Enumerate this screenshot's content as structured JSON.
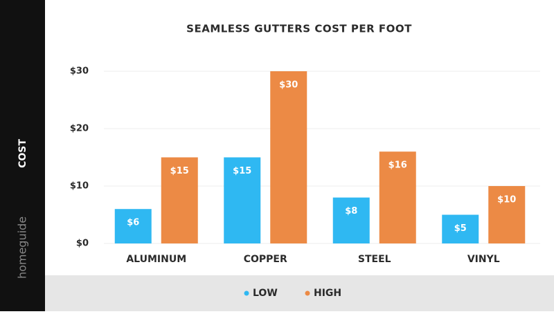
{
  "chart_data": {
    "type": "bar",
    "title": "SEAMLESS GUTTERS COST PER FOOT",
    "y_label": "COST",
    "brand": "homeguide",
    "categories": [
      "ALUMINUM",
      "COPPER",
      "STEEL",
      "VINYL"
    ],
    "series": [
      {
        "name": "LOW",
        "color": "#2fb8f2",
        "values": [
          6,
          15,
          8,
          5
        ],
        "value_labels": [
          "$6",
          "$15",
          "$8",
          "$5"
        ]
      },
      {
        "name": "HIGH",
        "color": "#ec8a45",
        "values": [
          15,
          30,
          16,
          10
        ],
        "value_labels": [
          "$15",
          "$30",
          "$16",
          "$10"
        ]
      }
    ],
    "ylim": [
      0,
      30
    ],
    "yticks": [
      {
        "value": 0,
        "label": "$0"
      },
      {
        "value": 10,
        "label": "$10"
      },
      {
        "value": 20,
        "label": "$20"
      },
      {
        "value": 30,
        "label": "$30"
      }
    ],
    "grid": true,
    "legend": "bottom"
  }
}
